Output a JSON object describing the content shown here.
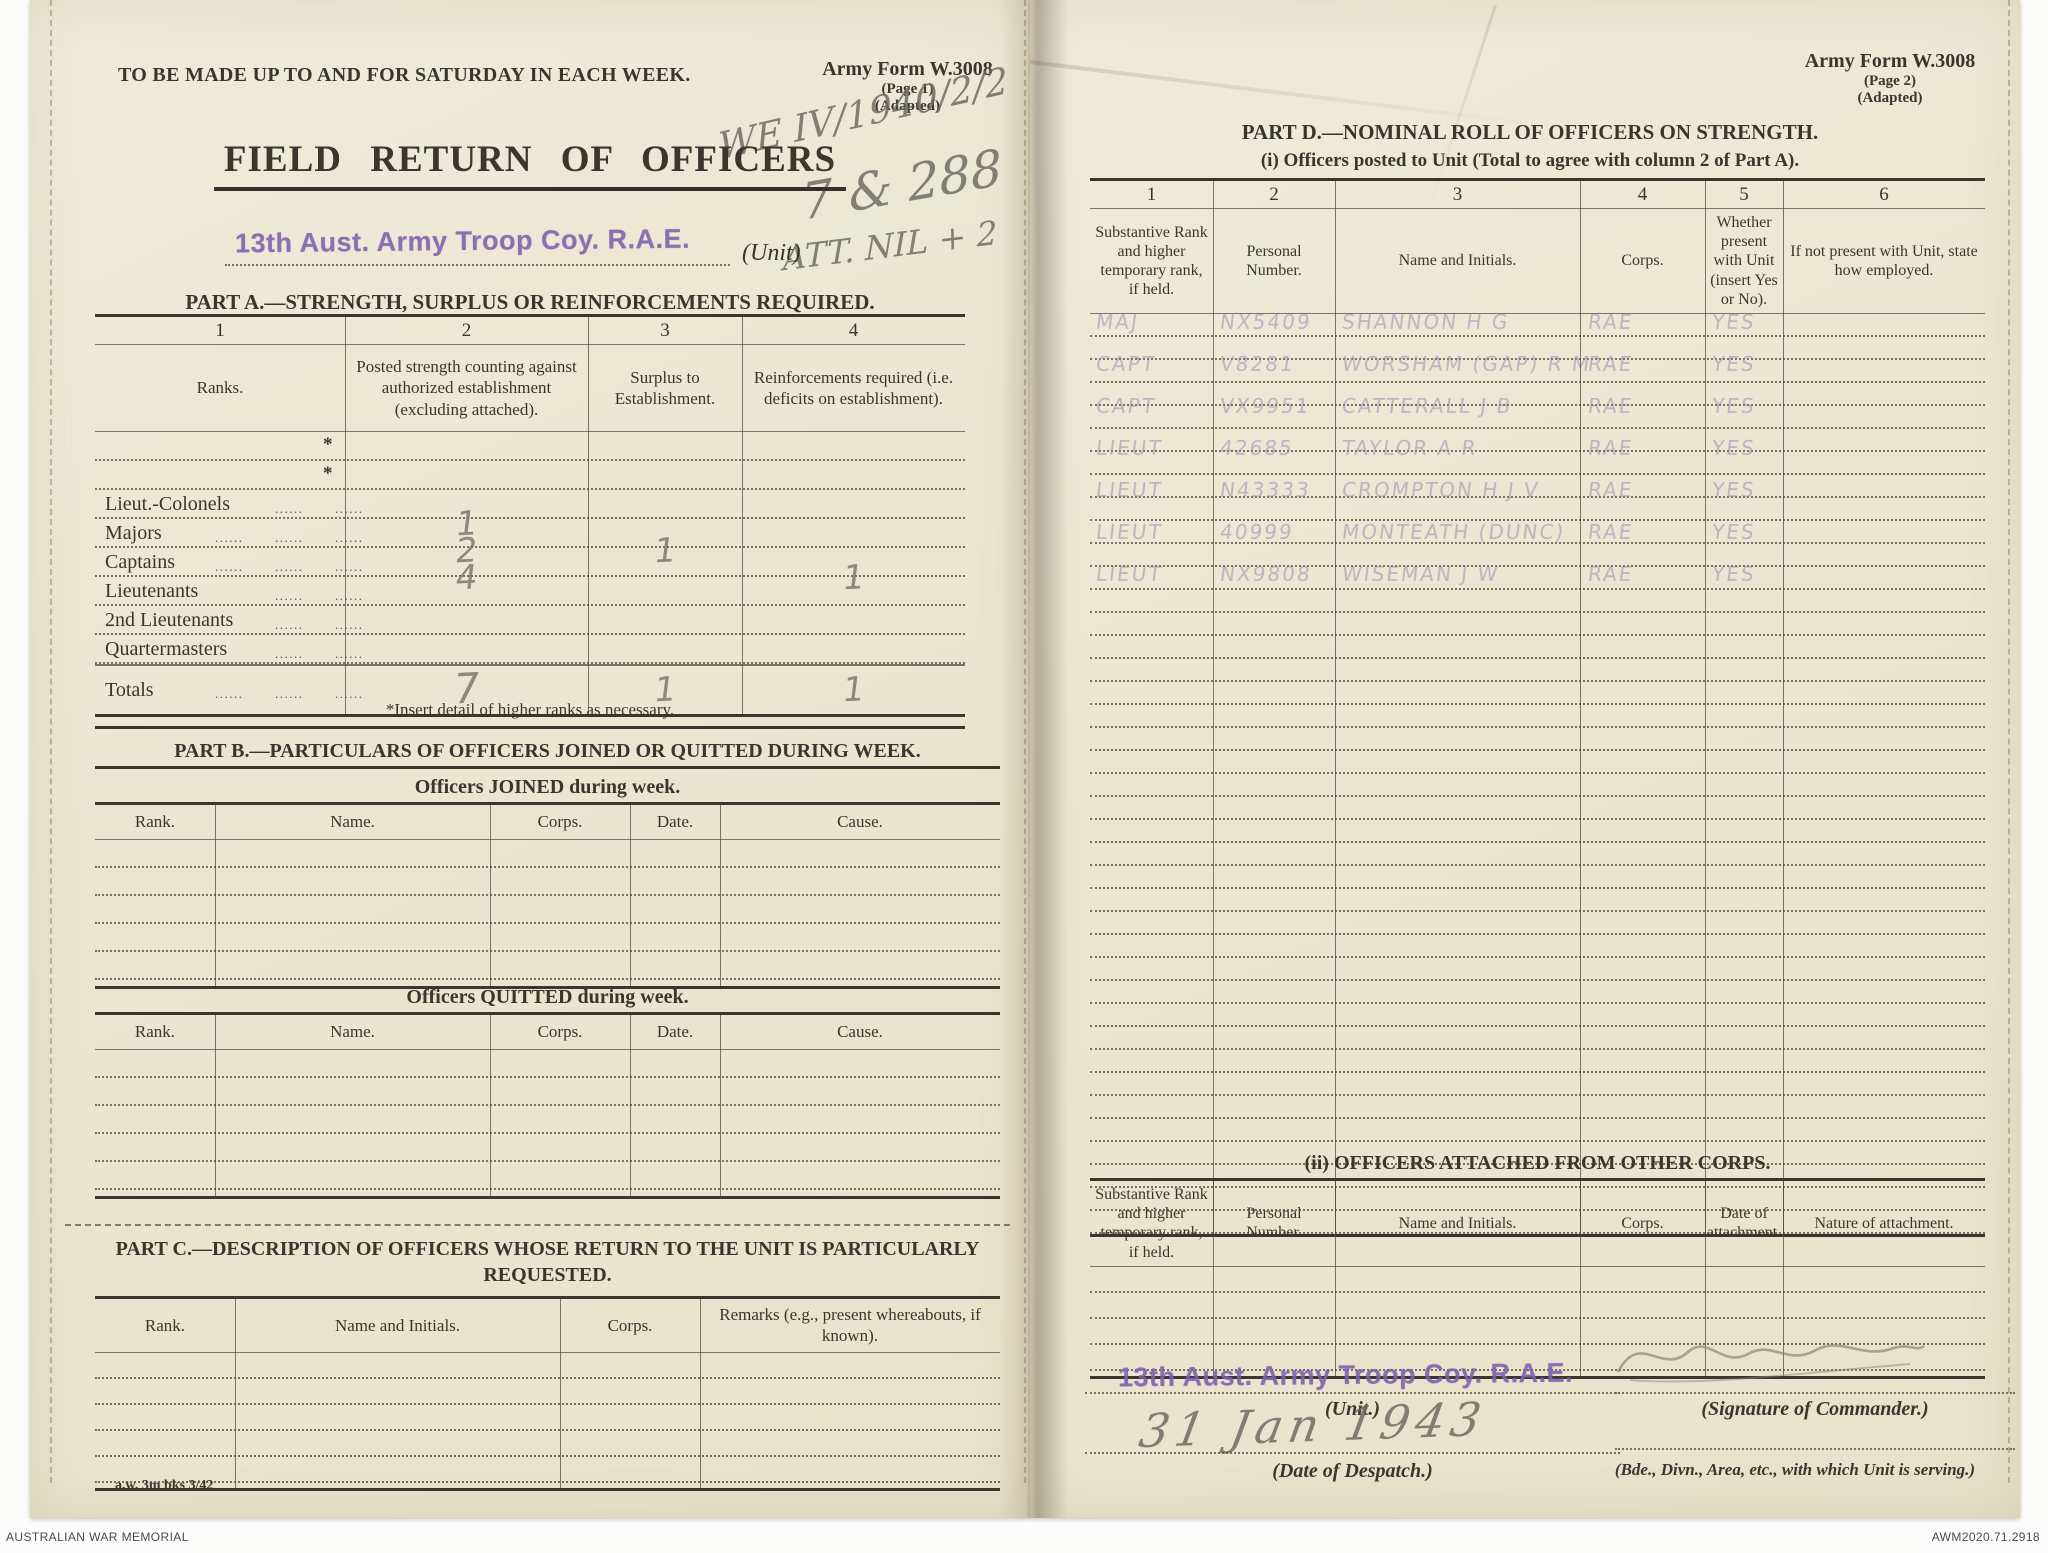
{
  "archive": {
    "left": "AUSTRALIAN WAR MEMORIAL",
    "right": "AWM2020.71.2918"
  },
  "colors": {
    "paper": "#eae6d1",
    "ink": "#3a362c",
    "stamp_purple": "#7d5fae",
    "pencil_gray": "#6f6c63",
    "pencil_purple": "#968bb0"
  },
  "page1": {
    "top_note": "TO BE MADE UP TO AND FOR SATURDAY IN EACH WEEK.",
    "form_id": {
      "line1": "Army Form W.3008",
      "line2": "(Page 1)",
      "line3": "(Adapted)"
    },
    "pencil_annotations": [
      "WE IV/1940/2/2",
      "7 & 288",
      "ATT. NIL + 2"
    ],
    "title": "FIELD RETURN OF OFFICERS",
    "unit_stamp": "13th Aust. Army Troop Coy. R.A.E.",
    "unit_label": "(Unit)",
    "part_a": {
      "heading": "PART A.—STRENGTH, SURPLUS OR REINFORCEMENTS REQUIRED.",
      "col_numbers": [
        "1",
        "2",
        "3",
        "4"
      ],
      "col_headers": [
        "Ranks.",
        "Posted strength counting against authorized establishment (excluding attached).",
        "Surplus to Establishment.",
        "Reinforcements required (i.e. deficits on establishment)."
      ],
      "rows": [
        {
          "rank": "",
          "star": true,
          "posted": "",
          "surplus": "",
          "reinforcements": ""
        },
        {
          "rank": "",
          "star": true,
          "posted": "",
          "surplus": "",
          "reinforcements": ""
        },
        {
          "rank": "Lieut.-Colonels",
          "star": false,
          "posted": "",
          "surplus": "",
          "reinforcements": ""
        },
        {
          "rank": "Majors",
          "star": false,
          "posted": "1",
          "surplus": "",
          "reinforcements": ""
        },
        {
          "rank": "Captains",
          "star": false,
          "posted": "2",
          "surplus": "1",
          "reinforcements": ""
        },
        {
          "rank": "Lieutenants",
          "star": false,
          "posted": "4",
          "surplus": "",
          "reinforcements": "1"
        },
        {
          "rank": "2nd Lieutenants",
          "star": false,
          "posted": "",
          "surplus": "",
          "reinforcements": ""
        },
        {
          "rank": "Quartermasters",
          "star": false,
          "posted": "",
          "surplus": "",
          "reinforcements": ""
        }
      ],
      "totals": {
        "label": "Totals",
        "posted": "7",
        "surplus": "1",
        "reinforcements": "1"
      },
      "footnote": "*Insert detail of higher ranks as necessary."
    },
    "part_b": {
      "heading": "PART B.—PARTICULARS OF OFFICERS JOINED OR QUITTED DURING WEEK.",
      "joined_title": "Officers JOINED during week.",
      "quitted_title": "Officers QUITTED during week.",
      "col_headers": [
        "Rank.",
        "Name.",
        "Corps.",
        "Date.",
        "Cause."
      ]
    },
    "part_c": {
      "heading_line1": "PART C.—DESCRIPTION OF OFFICERS WHOSE RETURN TO THE UNIT IS PARTICULARLY",
      "heading_line2": "REQUESTED.",
      "col_headers": [
        "Rank.",
        "Name and Initials.",
        "Corps.",
        "Remarks (e.g., present whereabouts, if known)."
      ]
    },
    "print_code": "a.w. 3m bks 3/42"
  },
  "page2": {
    "form_id": {
      "line1": "Army Form W.3008",
      "line2": "(Page 2)",
      "line3": "(Adapted)"
    },
    "part_d": {
      "heading": "PART D.—NOMINAL ROLL OF OFFICERS ON STRENGTH.",
      "subheading": "(i) Officers posted to Unit (Total to agree with column 2 of Part A).",
      "col_numbers": [
        "1",
        "2",
        "3",
        "4",
        "5",
        "6"
      ],
      "col_headers": [
        "Substantive Rank and higher temporary rank, if held.",
        "Personal Number.",
        "Name and Initials.",
        "Corps.",
        "Whether present with Unit (insert Yes or No).",
        "If not present with Unit, state how employed."
      ],
      "entries": [
        {
          "rank": "MAJ",
          "number": "NX5409",
          "name": "SHANNON H G",
          "corps": "RAE",
          "present": "YES",
          "employed": ""
        },
        {
          "rank": "CAPT",
          "number": "V8281",
          "name": "WORSHAM (GAP) R M",
          "corps": "RAE",
          "present": "YES",
          "employed": ""
        },
        {
          "rank": "CAPT",
          "number": "VX9951",
          "name": "CATTERALL J B",
          "corps": "RAE",
          "present": "YES",
          "employed": ""
        },
        {
          "rank": "LIEUT",
          "number": "42685",
          "name": "TAYLOR A R",
          "corps": "RAE",
          "present": "YES",
          "employed": ""
        },
        {
          "rank": "LIEUT",
          "number": "N43333",
          "name": "CROMPTON H J V",
          "corps": "RAE",
          "present": "YES",
          "employed": ""
        },
        {
          "rank": "LIEUT",
          "number": "40999",
          "name": "MONTEATH (DUNC)",
          "corps": "RAE",
          "present": "YES",
          "employed": ""
        },
        {
          "rank": "LIEUT",
          "number": "NX9808",
          "name": "WISEMAN J W",
          "corps": "RAE",
          "present": "YES",
          "employed": ""
        }
      ]
    },
    "attached": {
      "heading": "(ii) OFFICERS ATTACHED FROM OTHER CORPS.",
      "col_headers": [
        "Substantive Rank and higher temporary rank, if held.",
        "Personal Number.",
        "Name and Initials.",
        "Corps.",
        "Date of attachment.",
        "Nature of attachment."
      ]
    },
    "footer": {
      "unit_stamp": "13th Aust. Army Troop Coy. R.A.E.",
      "unit_label": "(Unit.)",
      "signature_label": "(Signature of Commander.)",
      "date_value": "31 Jan 1943",
      "date_label": "(Date of Despatch.)",
      "serving_label": "(Bde., Divn., Area, etc., with which Unit is serving.)"
    }
  }
}
